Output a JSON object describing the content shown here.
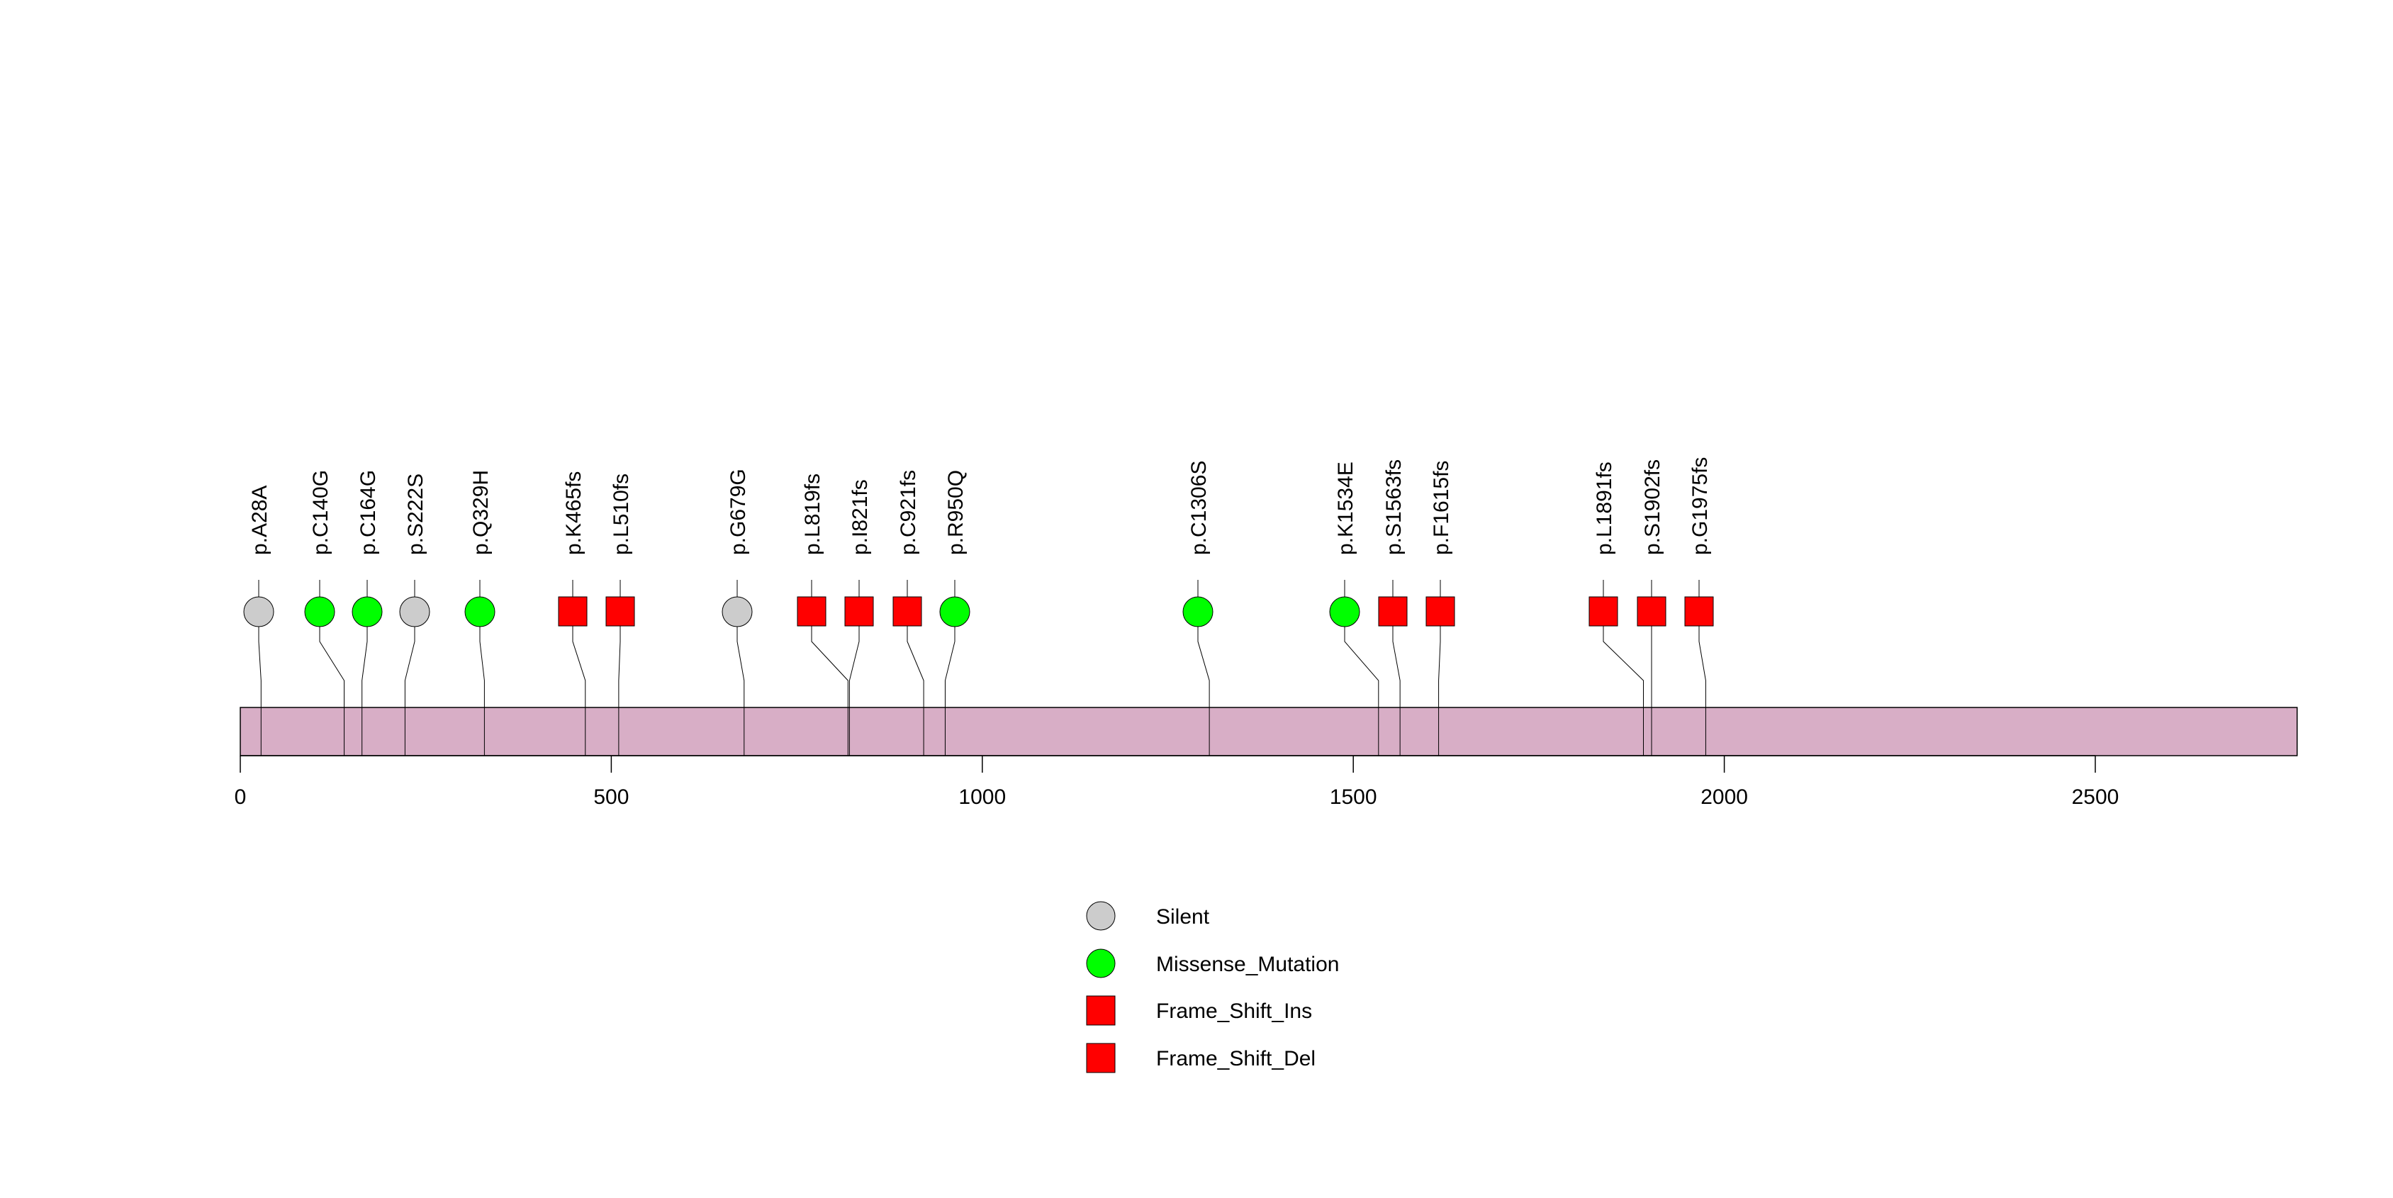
{
  "chart_data": {
    "type": "lollipop",
    "title": "",
    "xlabel": "",
    "ylabel": "",
    "xlim": [
      0,
      2772
    ],
    "protein_length": 2772,
    "x_ticks": [
      0,
      500,
      1000,
      1500,
      2000,
      2500
    ],
    "x_tick_labels": [
      "0",
      "500",
      "1000",
      "1500",
      "2000",
      "2500"
    ],
    "mutations": [
      {
        "label": "p.A28A",
        "position": 28,
        "type": "Silent"
      },
      {
        "label": "p.C140G",
        "position": 140,
        "type": "Missense_Mutation"
      },
      {
        "label": "p.C164G",
        "position": 164,
        "type": "Missense_Mutation"
      },
      {
        "label": "p.S222S",
        "position": 222,
        "type": "Silent"
      },
      {
        "label": "p.Q329H",
        "position": 329,
        "type": "Missense_Mutation"
      },
      {
        "label": "p.K465fs",
        "position": 465,
        "type": "Frame_Shift"
      },
      {
        "label": "p.L510fs",
        "position": 510,
        "type": "Frame_Shift"
      },
      {
        "label": "p.G679G",
        "position": 679,
        "type": "Silent"
      },
      {
        "label": "p.L819fs",
        "position": 819,
        "type": "Frame_Shift"
      },
      {
        "label": "p.I821fs",
        "position": 821,
        "type": "Frame_Shift"
      },
      {
        "label": "p.C921fs",
        "position": 921,
        "type": "Frame_Shift"
      },
      {
        "label": "p.R950Q",
        "position": 950,
        "type": "Missense_Mutation"
      },
      {
        "label": "p.C1306S",
        "position": 1306,
        "type": "Missense_Mutation"
      },
      {
        "label": "p.K1534E",
        "position": 1534,
        "type": "Missense_Mutation"
      },
      {
        "label": "p.S1563fs",
        "position": 1563,
        "type": "Frame_Shift"
      },
      {
        "label": "p.F1615fs",
        "position": 1615,
        "type": "Frame_Shift"
      },
      {
        "label": "p.L1891fs",
        "position": 1891,
        "type": "Frame_Shift"
      },
      {
        "label": "p.S1902fs",
        "position": 1902,
        "type": "Frame_Shift"
      },
      {
        "label": "p.G1975fs",
        "position": 1975,
        "type": "Frame_Shift"
      }
    ],
    "legend": [
      {
        "label": "Silent",
        "shape": "circle",
        "color": "#cccccc"
      },
      {
        "label": "Missense_Mutation",
        "shape": "circle",
        "color": "#00ff00"
      },
      {
        "label": "Frame_Shift_Ins",
        "shape": "square",
        "color": "#ff0000"
      },
      {
        "label": "Frame_Shift_Del",
        "shape": "square",
        "color": "#ff0000"
      }
    ],
    "legend_placement": "bottom-center",
    "colors": {
      "Silent": "#cccccc",
      "Missense_Mutation": "#00ff00",
      "Frame_Shift": "#ff0000",
      "protein_bar": "#d8aec6"
    }
  }
}
